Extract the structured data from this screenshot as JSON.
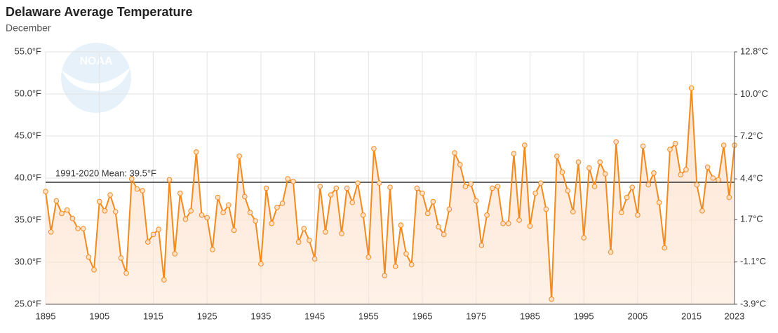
{
  "chart_data": {
    "type": "line",
    "title": "Delaware Average Temperature",
    "subtitle": "December",
    "logo_text": "NOAA",
    "x": [
      1895,
      1896,
      1897,
      1898,
      1899,
      1900,
      1901,
      1902,
      1903,
      1904,
      1905,
      1906,
      1907,
      1908,
      1909,
      1910,
      1911,
      1912,
      1913,
      1914,
      1915,
      1916,
      1917,
      1918,
      1919,
      1920,
      1921,
      1922,
      1923,
      1924,
      1925,
      1926,
      1927,
      1928,
      1929,
      1930,
      1931,
      1932,
      1933,
      1934,
      1935,
      1936,
      1937,
      1938,
      1939,
      1940,
      1941,
      1942,
      1943,
      1944,
      1945,
      1946,
      1947,
      1948,
      1949,
      1950,
      1951,
      1952,
      1953,
      1954,
      1955,
      1956,
      1957,
      1958,
      1959,
      1960,
      1961,
      1962,
      1963,
      1964,
      1965,
      1966,
      1967,
      1968,
      1969,
      1970,
      1971,
      1972,
      1973,
      1974,
      1975,
      1976,
      1977,
      1978,
      1979,
      1980,
      1981,
      1982,
      1983,
      1984,
      1985,
      1986,
      1987,
      1988,
      1989,
      1990,
      1991,
      1992,
      1993,
      1994,
      1995,
      1996,
      1997,
      1998,
      1999,
      2000,
      2001,
      2002,
      2003,
      2004,
      2005,
      2006,
      2007,
      2008,
      2009,
      2010,
      2011,
      2012,
      2013,
      2014,
      2015,
      2016,
      2017,
      2018,
      2019,
      2020,
      2021,
      2022,
      2023
    ],
    "values": [
      38.4,
      33.6,
      37.3,
      35.8,
      36.2,
      35.2,
      34.0,
      34.0,
      30.6,
      29.1,
      37.2,
      36.1,
      38.0,
      36.0,
      30.5,
      28.7,
      39.9,
      38.7,
      38.5,
      32.4,
      33.3,
      33.9,
      27.9,
      39.8,
      31.0,
      38.2,
      35.1,
      36.1,
      43.1,
      35.6,
      35.3,
      31.5,
      37.7,
      35.9,
      36.8,
      33.8,
      42.6,
      37.8,
      35.9,
      34.9,
      29.8,
      38.8,
      34.6,
      36.5,
      37.0,
      39.9,
      39.6,
      32.4,
      34.0,
      32.6,
      30.4,
      39.0,
      33.6,
      38.0,
      38.8,
      33.4,
      38.8,
      37.1,
      39.4,
      35.6,
      30.6,
      43.5,
      39.4,
      28.4,
      38.9,
      29.5,
      34.4,
      31.0,
      29.7,
      38.8,
      38.2,
      35.8,
      37.2,
      34.2,
      33.3,
      36.3,
      43.0,
      41.6,
      39.0,
      39.3,
      37.3,
      32.0,
      35.6,
      38.8,
      39.0,
      34.6,
      34.6,
      42.9,
      35.0,
      43.9,
      34.3,
      38.2,
      39.4,
      36.3,
      25.6,
      42.6,
      40.7,
      38.5,
      36.0,
      41.9,
      32.9,
      41.2,
      39.0,
      41.9,
      40.5,
      31.2,
      44.3,
      35.9,
      37.7,
      38.9,
      35.6,
      43.8,
      39.2,
      40.6,
      37.1,
      31.7,
      43.4,
      44.1,
      40.4,
      41.0,
      50.7,
      39.2,
      36.1,
      41.3,
      40.0,
      39.8,
      43.9,
      37.7,
      43.9
    ],
    "color": "#f28a1e",
    "mean": {
      "value": 39.5,
      "label": "1991-2020 Mean: 39.5°F"
    },
    "xlim": [
      1895,
      2023
    ],
    "xticks": [
      1895,
      1905,
      1915,
      1925,
      1935,
      1945,
      1955,
      1965,
      1975,
      1985,
      1995,
      2005,
      2015,
      2023
    ],
    "ylim": [
      25,
      55
    ],
    "yticks": [
      {
        "value": 25,
        "label": "25.0°F"
      },
      {
        "value": 30,
        "label": "30.0°F"
      },
      {
        "value": 35,
        "label": "35.0°F"
      },
      {
        "value": 40,
        "label": "40.0°F"
      },
      {
        "value": 45,
        "label": "45.0°F"
      },
      {
        "value": 50,
        "label": "50.0°F"
      },
      {
        "value": 55,
        "label": "55.0°F"
      }
    ],
    "y2lim": [
      -3.9,
      12.8
    ],
    "y2ticks": [
      {
        "value": -3.9,
        "label": "-3.9°C"
      },
      {
        "value": -1.1,
        "label": "-1.1°C"
      },
      {
        "value": 1.7,
        "label": "1.7°C"
      },
      {
        "value": 4.4,
        "label": "4.4°C"
      },
      {
        "value": 7.2,
        "label": "7.2°C"
      },
      {
        "value": 10.0,
        "label": "10.0°C"
      },
      {
        "value": 12.8,
        "label": "12.8°C"
      }
    ],
    "grid": true
  }
}
